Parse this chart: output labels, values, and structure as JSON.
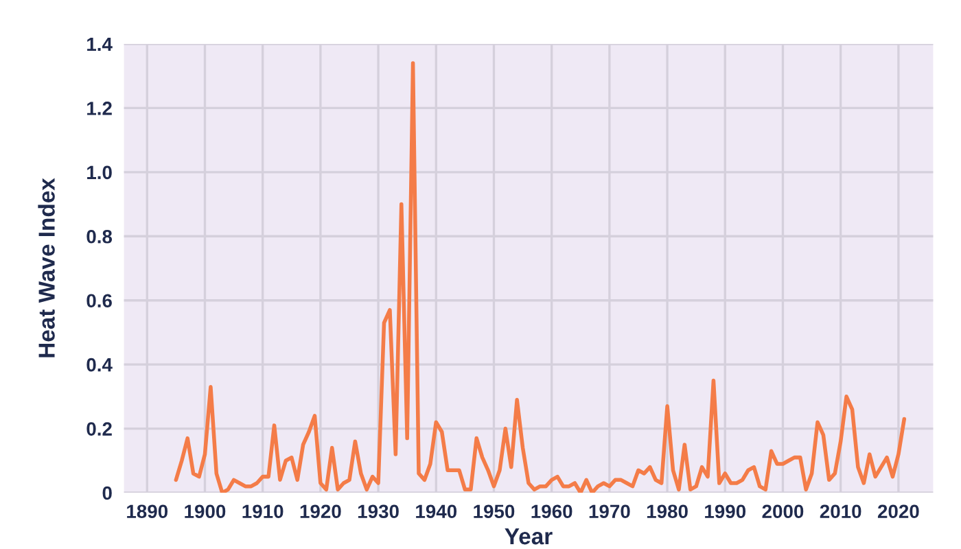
{
  "chart_data": {
    "type": "line",
    "xlabel": "Year",
    "ylabel": "Heat Wave Index",
    "x": [
      1895,
      1896,
      1897,
      1898,
      1899,
      1900,
      1901,
      1902,
      1903,
      1904,
      1905,
      1906,
      1907,
      1908,
      1909,
      1910,
      1911,
      1912,
      1913,
      1914,
      1915,
      1916,
      1917,
      1918,
      1919,
      1920,
      1921,
      1922,
      1923,
      1924,
      1925,
      1926,
      1927,
      1928,
      1929,
      1930,
      1931,
      1932,
      1933,
      1934,
      1935,
      1936,
      1937,
      1938,
      1939,
      1940,
      1941,
      1942,
      1943,
      1944,
      1945,
      1946,
      1947,
      1948,
      1949,
      1950,
      1951,
      1952,
      1953,
      1954,
      1955,
      1956,
      1957,
      1958,
      1959,
      1960,
      1961,
      1962,
      1963,
      1964,
      1965,
      1966,
      1967,
      1968,
      1969,
      1970,
      1971,
      1972,
      1973,
      1974,
      1975,
      1976,
      1977,
      1978,
      1979,
      1980,
      1981,
      1982,
      1983,
      1984,
      1985,
      1986,
      1987,
      1988,
      1989,
      1990,
      1991,
      1992,
      1993,
      1994,
      1995,
      1996,
      1997,
      1998,
      1999,
      2000,
      2001,
      2002,
      2003,
      2004,
      2005,
      2006,
      2007,
      2008,
      2009,
      2010,
      2011,
      2012,
      2013,
      2014,
      2015,
      2016,
      2017,
      2018,
      2019,
      2020,
      2021
    ],
    "series": [
      {
        "color": "#f47c48",
        "values": [
          0.04,
          0.1,
          0.17,
          0.06,
          0.05,
          0.12,
          0.33,
          0.06,
          0.0,
          0.01,
          0.04,
          0.03,
          0.02,
          0.02,
          0.03,
          0.05,
          0.05,
          0.21,
          0.04,
          0.1,
          0.11,
          0.04,
          0.15,
          0.19,
          0.24,
          0.03,
          0.01,
          0.14,
          0.01,
          0.03,
          0.04,
          0.16,
          0.06,
          0.01,
          0.05,
          0.03,
          0.53,
          0.57,
          0.12,
          0.9,
          0.17,
          1.34,
          0.06,
          0.04,
          0.09,
          0.22,
          0.19,
          0.07,
          0.07,
          0.07,
          0.01,
          0.01,
          0.17,
          0.11,
          0.07,
          0.02,
          0.07,
          0.2,
          0.08,
          0.29,
          0.14,
          0.03,
          0.01,
          0.02,
          0.02,
          0.04,
          0.05,
          0.02,
          0.02,
          0.03,
          0.0,
          0.04,
          0.0,
          0.02,
          0.03,
          0.02,
          0.04,
          0.04,
          0.03,
          0.02,
          0.07,
          0.06,
          0.08,
          0.04,
          0.03,
          0.27,
          0.07,
          0.01,
          0.15,
          0.01,
          0.02,
          0.08,
          0.05,
          0.35,
          0.03,
          0.06,
          0.03,
          0.03,
          0.04,
          0.07,
          0.08,
          0.02,
          0.01,
          0.13,
          0.09,
          0.09,
          0.1,
          0.11,
          0.11,
          0.01,
          0.06,
          0.22,
          0.18,
          0.04,
          0.06,
          0.16,
          0.3,
          0.26,
          0.08,
          0.03,
          0.12,
          0.05,
          0.08,
          0.11,
          0.05,
          0.12,
          0.23
        ]
      }
    ],
    "xlim": [
      1886,
      2026
    ],
    "ylim": [
      0,
      1.4
    ],
    "xticks": [
      1890,
      1900,
      1910,
      1920,
      1930,
      1940,
      1950,
      1960,
      1970,
      1980,
      1990,
      2000,
      2010,
      2020
    ],
    "yticks": [
      0,
      0.2,
      0.4,
      0.6,
      0.8,
      {
        "value": 1,
        "label": "1.0"
      },
      1.2,
      1.4
    ],
    "grid": true
  }
}
